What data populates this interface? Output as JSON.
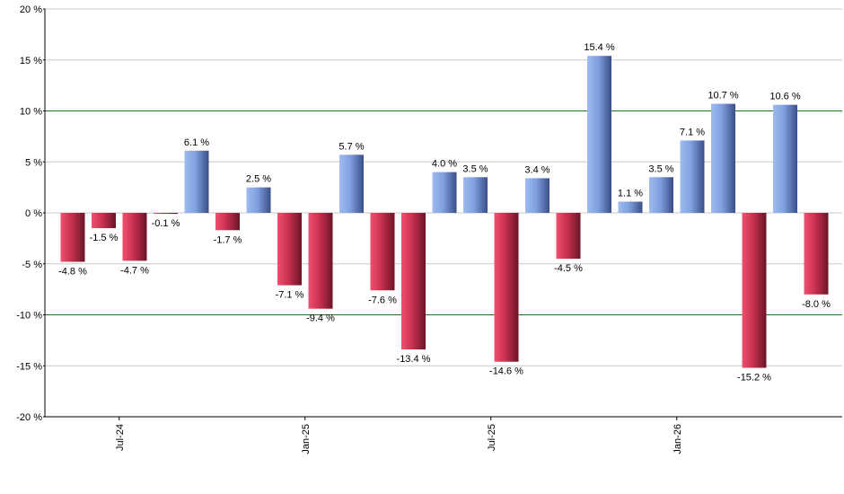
{
  "chart_data": {
    "type": "bar",
    "ylim": [
      -20,
      20
    ],
    "y_ticks": [
      20,
      15,
      10,
      5,
      0,
      -5,
      -10,
      -15,
      -20
    ],
    "y_tick_suffix": " %",
    "reference_lines": [
      10,
      -10
    ],
    "x_tick_labels": [
      {
        "label": "Jul-24",
        "after_bar": 1
      },
      {
        "label": "Jan-25",
        "after_bar": 7
      },
      {
        "label": "Jul-25",
        "after_bar": 13
      },
      {
        "label": "Jan-26",
        "after_bar": 19
      }
    ],
    "values": [
      -4.8,
      -1.5,
      -4.7,
      -0.1,
      6.1,
      -1.7,
      2.5,
      -7.1,
      -9.4,
      5.7,
      -7.6,
      -13.4,
      4.0,
      3.5,
      -14.6,
      3.4,
      -4.5,
      15.4,
      1.1,
      3.5,
      7.1,
      10.7,
      -15.2,
      10.6,
      -8.0
    ],
    "labels": [
      "-4.8 %",
      "-1.5 %",
      "-4.7 %",
      "-0.1 %",
      "6.1 %",
      "-1.7 %",
      "2.5 %",
      "-7.1 %",
      "-9.4 %",
      "5.7 %",
      "-7.6 %",
      "-13.4 %",
      "4.0 %",
      "3.5 %",
      "-14.6 %",
      "3.4 %",
      "-4.5 %",
      "15.4 %",
      "1.1 %",
      "3.5 %",
      "7.1 %",
      "10.7 %",
      "-15.2 %",
      "10.6 %",
      "-8.0 %"
    ],
    "grid": true,
    "colors": {
      "positive": "#6a8fd8",
      "negative": "#c4304f",
      "reference_line": "#1a7a1a",
      "grid": "#c8c8c8",
      "axis": "#000000"
    }
  }
}
